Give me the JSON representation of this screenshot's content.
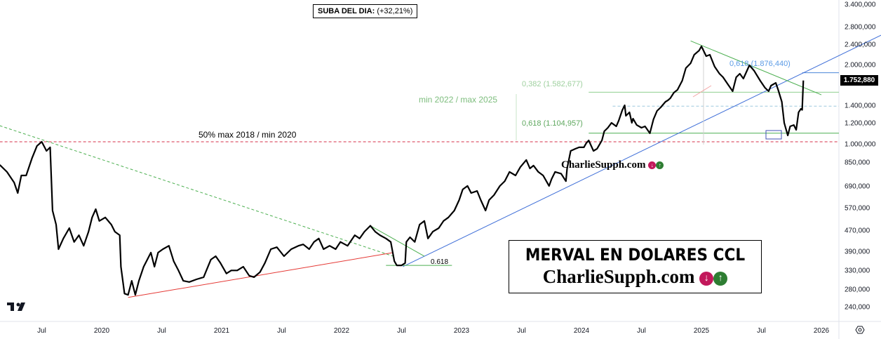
{
  "chart_data": {
    "type": "line",
    "title": "MERVAL EN DOLARES CCL",
    "watermark": "CharlieSupph.com",
    "scale": "log",
    "ylim": [
      225000,
      3500000
    ],
    "xlim": [
      2019.15,
      2026.4
    ],
    "y_ticks": [
      {
        "value": 3400000,
        "label": "3.400,000"
      },
      {
        "value": 2800000,
        "label": "2.800,000"
      },
      {
        "value": 2400000,
        "label": "2.400,000"
      },
      {
        "value": 2000000,
        "label": "2.000,000"
      },
      {
        "value": 1400000,
        "label": "1.400,000"
      },
      {
        "value": 1200000,
        "label": "1.200,000"
      },
      {
        "value": 1000000,
        "label": "1.000,000"
      },
      {
        "value": 850000,
        "label": "850,000"
      },
      {
        "value": 690000,
        "label": "690,000"
      },
      {
        "value": 570000,
        "label": "570,000"
      },
      {
        "value": 470000,
        "label": "470,000"
      },
      {
        "value": 390000,
        "label": "390,000"
      },
      {
        "value": 330000,
        "label": "330,000"
      },
      {
        "value": 280000,
        "label": "280,000"
      },
      {
        "value": 240000,
        "label": "240,000"
      }
    ],
    "x_ticks": [
      {
        "value": 2019.5,
        "label": "Jul"
      },
      {
        "value": 2020.0,
        "label": "2020"
      },
      {
        "value": 2020.5,
        "label": "Jul"
      },
      {
        "value": 2021.0,
        "label": "2021"
      },
      {
        "value": 2021.5,
        "label": "Jul"
      },
      {
        "value": 2022.0,
        "label": "2022"
      },
      {
        "value": 2022.5,
        "label": "Jul"
      },
      {
        "value": 2023.0,
        "label": "2023"
      },
      {
        "value": 2023.5,
        "label": "Jul"
      },
      {
        "value": 2024.0,
        "label": "2024"
      },
      {
        "value": 2024.5,
        "label": "Jul"
      },
      {
        "value": 2025.0,
        "label": "2025"
      },
      {
        "value": 2025.5,
        "label": "Jul"
      },
      {
        "value": 2026.0,
        "label": "2026"
      }
    ],
    "last_price": {
      "value": 1752880,
      "label": "1.752,880"
    },
    "series": [
      {
        "name": "MERVAL CCL",
        "color": "#000000",
        "points": [
          [
            2019.15,
            837
          ],
          [
            2019.21,
            787
          ],
          [
            2019.27,
            717
          ],
          [
            2019.3,
            654
          ],
          [
            2019.33,
            763
          ],
          [
            2019.37,
            763
          ],
          [
            2019.42,
            890
          ],
          [
            2019.46,
            988
          ],
          [
            2019.5,
            1025
          ],
          [
            2019.54,
            946
          ],
          [
            2019.57,
            976
          ],
          [
            2019.59,
            561
          ],
          [
            2019.62,
            496
          ],
          [
            2019.64,
            400
          ],
          [
            2019.68,
            439
          ],
          [
            2019.73,
            481
          ],
          [
            2019.77,
            426
          ],
          [
            2019.81,
            452
          ],
          [
            2019.85,
            412
          ],
          [
            2019.89,
            466
          ],
          [
            2019.92,
            528
          ],
          [
            2019.95,
            568
          ],
          [
            2019.98,
            512
          ],
          [
            2020.03,
            528
          ],
          [
            2020.08,
            496
          ],
          [
            2020.11,
            466
          ],
          [
            2020.15,
            452
          ],
          [
            2020.16,
            343
          ],
          [
            2020.19,
            271
          ],
          [
            2020.22,
            268
          ],
          [
            2020.25,
            303
          ],
          [
            2020.28,
            268
          ],
          [
            2020.31,
            303
          ],
          [
            2020.35,
            343
          ],
          [
            2020.38,
            365
          ],
          [
            2020.41,
            388
          ],
          [
            2020.44,
            343
          ],
          [
            2020.47,
            388
          ],
          [
            2020.51,
            400
          ],
          [
            2020.56,
            412
          ],
          [
            2020.6,
            360
          ],
          [
            2020.64,
            332
          ],
          [
            2020.68,
            303
          ],
          [
            2020.73,
            300
          ],
          [
            2020.79,
            307
          ],
          [
            2020.85,
            313
          ],
          [
            2020.91,
            365
          ],
          [
            2020.95,
            376
          ],
          [
            2020.99,
            354
          ],
          [
            2021.04,
            323
          ],
          [
            2021.08,
            332
          ],
          [
            2021.13,
            332
          ],
          [
            2021.18,
            343
          ],
          [
            2021.23,
            317
          ],
          [
            2021.27,
            313
          ],
          [
            2021.32,
            327
          ],
          [
            2021.36,
            354
          ],
          [
            2021.41,
            400
          ],
          [
            2021.46,
            407
          ],
          [
            2021.52,
            376
          ],
          [
            2021.58,
            400
          ],
          [
            2021.64,
            412
          ],
          [
            2021.68,
            417
          ],
          [
            2021.73,
            400
          ],
          [
            2021.77,
            426
          ],
          [
            2021.81,
            439
          ],
          [
            2021.85,
            400
          ],
          [
            2021.9,
            412
          ],
          [
            2021.95,
            400
          ],
          [
            2021.99,
            426
          ],
          [
            2022.05,
            412
          ],
          [
            2022.11,
            452
          ],
          [
            2022.15,
            439
          ],
          [
            2022.19,
            466
          ],
          [
            2022.24,
            491
          ],
          [
            2022.28,
            466
          ],
          [
            2022.32,
            452
          ],
          [
            2022.37,
            439
          ],
          [
            2022.41,
            426
          ],
          [
            2022.44,
            360
          ],
          [
            2022.46,
            347
          ],
          [
            2022.5,
            347
          ],
          [
            2022.53,
            354
          ],
          [
            2022.54,
            426
          ],
          [
            2022.57,
            444
          ],
          [
            2022.61,
            426
          ],
          [
            2022.65,
            496
          ],
          [
            2022.69,
            512
          ],
          [
            2022.72,
            439
          ],
          [
            2022.76,
            466
          ],
          [
            2022.81,
            481
          ],
          [
            2022.85,
            512
          ],
          [
            2022.89,
            528
          ],
          [
            2022.94,
            561
          ],
          [
            2022.98,
            615
          ],
          [
            2023.01,
            675
          ],
          [
            2023.05,
            696
          ],
          [
            2023.08,
            654
          ],
          [
            2023.13,
            666
          ],
          [
            2023.16,
            615
          ],
          [
            2023.2,
            561
          ],
          [
            2023.23,
            615
          ],
          [
            2023.27,
            642
          ],
          [
            2023.32,
            696
          ],
          [
            2023.36,
            726
          ],
          [
            2023.4,
            787
          ],
          [
            2023.45,
            763
          ],
          [
            2023.49,
            821
          ],
          [
            2023.54,
            874
          ],
          [
            2023.57,
            811
          ],
          [
            2023.6,
            832
          ],
          [
            2023.64,
            787
          ],
          [
            2023.68,
            763
          ],
          [
            2023.73,
            696
          ],
          [
            2023.75,
            739
          ],
          [
            2023.78,
            787
          ],
          [
            2023.83,
            775
          ],
          [
            2023.87,
            726
          ],
          [
            2023.88,
            811
          ],
          [
            2023.91,
            946
          ],
          [
            2023.95,
            964
          ],
          [
            2023.98,
            976
          ],
          [
            2024.02,
            976
          ],
          [
            2024.04,
            1013
          ],
          [
            2024.06,
            1037
          ],
          [
            2024.1,
            946
          ],
          [
            2024.13,
            964
          ],
          [
            2024.17,
            1037
          ],
          [
            2024.19,
            1124
          ],
          [
            2024.22,
            1159
          ],
          [
            2024.25,
            1210
          ],
          [
            2024.29,
            1173
          ],
          [
            2024.31,
            1232
          ],
          [
            2024.34,
            1351
          ],
          [
            2024.36,
            1411
          ],
          [
            2024.37,
            1287
          ],
          [
            2024.4,
            1327
          ],
          [
            2024.42,
            1210
          ],
          [
            2024.43,
            1255
          ],
          [
            2024.46,
            1187
          ],
          [
            2024.5,
            1159
          ],
          [
            2024.53,
            1173
          ],
          [
            2024.57,
            1104
          ],
          [
            2024.6,
            1247
          ],
          [
            2024.63,
            1343
          ],
          [
            2024.66,
            1385
          ],
          [
            2024.7,
            1455
          ],
          [
            2024.72,
            1473
          ],
          [
            2024.74,
            1500
          ],
          [
            2024.77,
            1576
          ],
          [
            2024.8,
            1615
          ],
          [
            2024.84,
            1750
          ],
          [
            2024.87,
            1955
          ],
          [
            2024.91,
            2040
          ],
          [
            2024.94,
            2197
          ],
          [
            2024.98,
            2278
          ],
          [
            2025.0,
            2366
          ],
          [
            2025.04,
            2170
          ],
          [
            2025.07,
            2197
          ],
          [
            2025.11,
            1980
          ],
          [
            2025.15,
            1861
          ],
          [
            2025.18,
            1805
          ],
          [
            2025.22,
            1697
          ],
          [
            2025.26,
            1596
          ],
          [
            2025.29,
            1805
          ],
          [
            2025.32,
            1861
          ],
          [
            2025.35,
            1783
          ],
          [
            2025.4,
            2003
          ],
          [
            2025.44,
            1908
          ],
          [
            2025.49,
            1750
          ],
          [
            2025.53,
            1646
          ],
          [
            2025.56,
            1596
          ],
          [
            2025.58,
            1676
          ],
          [
            2025.62,
            1717
          ],
          [
            2025.64,
            1615
          ],
          [
            2025.67,
            1455
          ],
          [
            2025.69,
            1210
          ],
          [
            2025.72,
            1083
          ],
          [
            2025.74,
            1173
          ],
          [
            2025.77,
            1187
          ],
          [
            2025.79,
            1138
          ],
          [
            2025.81,
            1327
          ],
          [
            2025.83,
            1368
          ],
          [
            2025.84,
            1355
          ],
          [
            2025.85,
            1752.88
          ]
        ],
        "unit": "thousands"
      }
    ],
    "drawings": [
      {
        "name": "level-50pct-line",
        "type": "hline",
        "value": 1025000,
        "from": 2019.15,
        "to": 2026.4,
        "color": "#d6324a",
        "dash": true
      },
      {
        "name": "fib-0618-line",
        "type": "hline",
        "value": 1104957,
        "from": 2024.06,
        "to": 2026.4,
        "color": "#4caf50",
        "dash": false
      },
      {
        "name": "fib-0382-line",
        "type": "hline",
        "value": 1582677,
        "from": 2024.06,
        "to": 2026.4,
        "color": "#8fcf8f",
        "dash": false
      },
      {
        "name": "level-1400-dashed-line",
        "type": "hline",
        "value": 1400000,
        "from": 2024.26,
        "to": 2026.4,
        "color": "#9ec8de",
        "dash": true
      },
      {
        "name": "fib-blue-0618-line",
        "type": "hline",
        "value": 1876440,
        "from": 2025.84,
        "to": 2026.4,
        "color": "#4a86d8",
        "dash": false
      },
      {
        "name": "downtrend-dashed-line",
        "type": "segment",
        "p1": [
          2019.15,
          1180000
        ],
        "p2": [
          2022.43,
          376000
        ],
        "color": "#4caf50",
        "dash": true
      },
      {
        "name": "support-trend-line",
        "type": "segment",
        "p1": [
          2020.22,
          262000
        ],
        "p2": [
          2022.43,
          388000
        ],
        "color": "#e53935",
        "dash": false
      },
      {
        "name": "uptrend-line",
        "type": "segment",
        "p1": [
          2022.51,
          343000
        ],
        "p2": [
          2026.5,
          2610000
        ],
        "color": "#3f6fd8",
        "dash": false
      },
      {
        "name": "downtrend-2025-line",
        "type": "segment",
        "p1": [
          2024.91,
          2480000
        ],
        "p2": [
          2026.0,
          1547000
        ],
        "color": "#4caf50",
        "dash": false
      },
      {
        "name": "downtrend-2022-line",
        "type": "segment",
        "p1": [
          2022.24,
          491000
        ],
        "p2": [
          2022.69,
          376000
        ],
        "color": "#4caf50",
        "dash": false
      },
      {
        "name": "fib-2022-0618-line",
        "type": "segment",
        "p1": [
          2022.37,
          347000
        ],
        "p2": [
          2022.92,
          347000
        ],
        "color": "#4caf50",
        "dash": false
      }
    ],
    "annotations": {
      "daily_gain_label": "SUBA DEL DIA:",
      "daily_gain_value": "(+32,21%)",
      "fib_range": "min 2022 / max 2025",
      "fib_0382": "0,382 (1.582,677)",
      "fib_0618": "0,618 (1.104,957)",
      "fib_blue_0618": "0,618 (1.876,440)",
      "level_50": "50% max 2018 / min 2020",
      "fib_2022": "0.618"
    }
  },
  "colors": {
    "fib_green": "#6fb26f",
    "fib_light": "#9fd09f",
    "fib_blue": "#5b9be6",
    "down": "#c2185b",
    "up": "#2e7d32"
  }
}
